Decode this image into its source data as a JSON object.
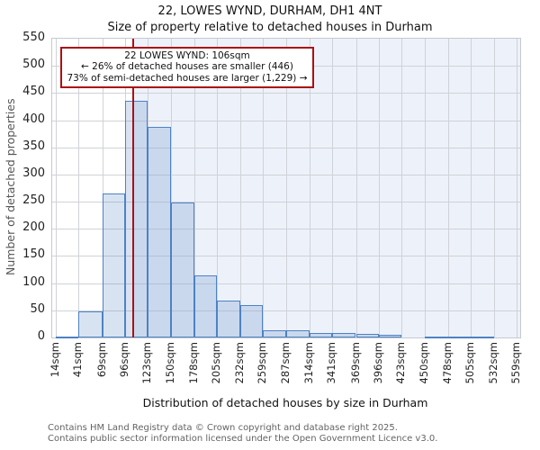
{
  "annotation": {
    "line1": "22 LOWES WYND: 106sqm",
    "line2": "← 26% of detached houses are smaller (446)",
    "line3": "73% of semi-detached houses are larger (1,229) →"
  },
  "footer": {
    "line1": "Contains HM Land Registry data © Crown copyright and database right 2025.",
    "line2": "Contains public sector information licensed under the Open Government Licence v3.0."
  },
  "chart_data": {
    "type": "bar",
    "title": "22, LOWES WYND, DURHAM, DH1 4NT",
    "subtitle": "Size of property relative to detached houses in Durham",
    "xlabel": "Distribution of detached houses by size in Durham",
    "ylabel": "Number of detached properties",
    "ylim": [
      0,
      550
    ],
    "y_ticks": [
      0,
      50,
      100,
      150,
      200,
      250,
      300,
      350,
      400,
      450,
      500,
      550
    ],
    "bin_edges": [
      14,
      41,
      69,
      96,
      123,
      150,
      178,
      205,
      232,
      259,
      287,
      314,
      341,
      369,
      396,
      423,
      450,
      478,
      505,
      532,
      559
    ],
    "x_tick_labels": [
      "14sqm",
      "41sqm",
      "69sqm",
      "96sqm",
      "123sqm",
      "150sqm",
      "178sqm",
      "205sqm",
      "232sqm",
      "259sqm",
      "287sqm",
      "314sqm",
      "341sqm",
      "369sqm",
      "396sqm",
      "423sqm",
      "450sqm",
      "478sqm",
      "505sqm",
      "532sqm",
      "559sqm"
    ],
    "values": [
      2,
      48,
      265,
      435,
      388,
      248,
      115,
      68,
      59,
      13,
      13,
      8,
      8,
      6,
      5,
      0,
      2,
      2,
      2,
      0
    ],
    "marker": {
      "value_sqm": 106
    },
    "grid": true,
    "colors": {
      "bar_fill": "rgba(85,133,200,0.23)",
      "bar_border": "#4d82c3",
      "marker_line": "#aa1111",
      "annotation_border": "#aa1111",
      "shade_right_of_marker": "#edf1fa",
      "gridline": "#cfd2d7"
    }
  }
}
